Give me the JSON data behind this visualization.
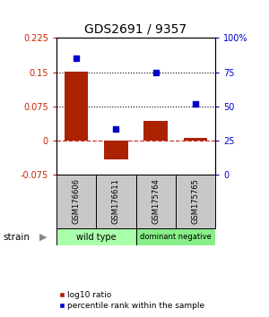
{
  "title": "GDS2691 / 9357",
  "samples": [
    "GSM176606",
    "GSM176611",
    "GSM175764",
    "GSM175765"
  ],
  "log10_ratio": [
    0.152,
    -0.042,
    0.042,
    0.005
  ],
  "percentile_rank": [
    85.0,
    33.0,
    75.0,
    52.0
  ],
  "ylim_left": [
    -0.075,
    0.225
  ],
  "ylim_right": [
    0,
    100
  ],
  "left_ticks": [
    -0.075,
    0,
    0.075,
    0.15,
    0.225
  ],
  "right_ticks": [
    0,
    25,
    50,
    75,
    100
  ],
  "right_tick_labels": [
    "0",
    "25",
    "50",
    "75",
    "100%"
  ],
  "hlines": [
    0.075,
    0.15
  ],
  "bar_color": "#aa2200",
  "point_color": "#0000cc",
  "zero_line_color": "#cc3333",
  "grid_line_color": "#000000",
  "sample_box_color": "#c8c8c8",
  "wt_color": "#aaffaa",
  "dn_color": "#88ee88",
  "strain_label": "strain",
  "legend_ratio_label": "log10 ratio",
  "legend_pct_label": "percentile rank within the sample",
  "bar_width": 0.6
}
